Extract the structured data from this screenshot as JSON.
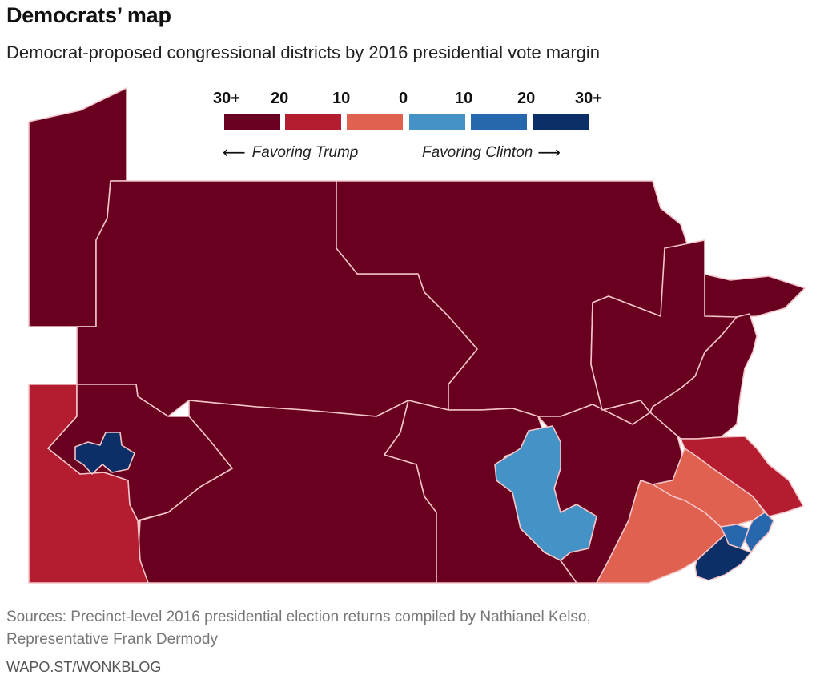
{
  "header": {
    "title": "Democrats’ map",
    "subtitle": "Democrat-proposed congressional districts by 2016 presidential vote margin"
  },
  "legend": {
    "ticks": [
      "30+",
      "20",
      "10",
      "0",
      "10",
      "20",
      "30+"
    ],
    "bins": [
      {
        "label": "Trump 30+",
        "color": "#6a0020"
      },
      {
        "label": "Trump 10–20",
        "color": "#b31d2f"
      },
      {
        "label": "Trump 0–10",
        "color": "#e0614f"
      },
      {
        "label": "Clinton 0–10",
        "color": "#4593c6"
      },
      {
        "label": "Clinton 10–20",
        "color": "#2767ae"
      },
      {
        "label": "Clinton 30+",
        "color": "#0b2f66"
      }
    ],
    "left_direction": "Favoring Trump",
    "right_direction": "Favoring Clinton",
    "left_arrow_icon": "arrow-left-icon",
    "right_arrow_icon": "arrow-right-icon"
  },
  "map": {
    "region": "Pennsylvania",
    "border_color": "#f2c4c8",
    "districts": [
      {
        "id": "northwest",
        "category": "Trump 30+"
      },
      {
        "id": "north-central",
        "category": "Trump 30+"
      },
      {
        "id": "northeast",
        "category": "Trump 30+"
      },
      {
        "id": "central",
        "category": "Trump 30+"
      },
      {
        "id": "southwest-outer",
        "category": "Trump 10–20"
      },
      {
        "id": "pittsburgh-ring",
        "category": "Trump 30+"
      },
      {
        "id": "pittsburgh",
        "category": "Clinton 30+"
      },
      {
        "id": "southwest-central",
        "category": "Trump 30+"
      },
      {
        "id": "south-central",
        "category": "Trump 30+"
      },
      {
        "id": "harrisburg-area",
        "category": "Trump 30+"
      },
      {
        "id": "lancaster-area",
        "category": "Trump 30+"
      },
      {
        "id": "lehigh-north",
        "category": "Trump 10–20"
      },
      {
        "id": "lehigh-valley",
        "category": "Clinton 0–10"
      },
      {
        "id": "bucks",
        "category": "Trump 0–10"
      },
      {
        "id": "reading-area",
        "category": "Trump 0–10"
      },
      {
        "id": "montgomery",
        "category": "Clinton 10–20"
      },
      {
        "id": "chester-delaware",
        "category": "Clinton 10–20"
      },
      {
        "id": "philadelphia-north",
        "category": "Clinton 30+"
      },
      {
        "id": "philadelphia-central",
        "category": "Clinton 30+"
      },
      {
        "id": "philadelphia-south",
        "category": "Clinton 30+"
      }
    ]
  },
  "footer": {
    "sources_line1": "Sources: Precinct-level 2016 presidential election returns compiled by Nathianel Kelso,",
    "sources_line2": "Representative Frank Dermody",
    "credit": "WAPO.ST/WONKBLOG"
  }
}
